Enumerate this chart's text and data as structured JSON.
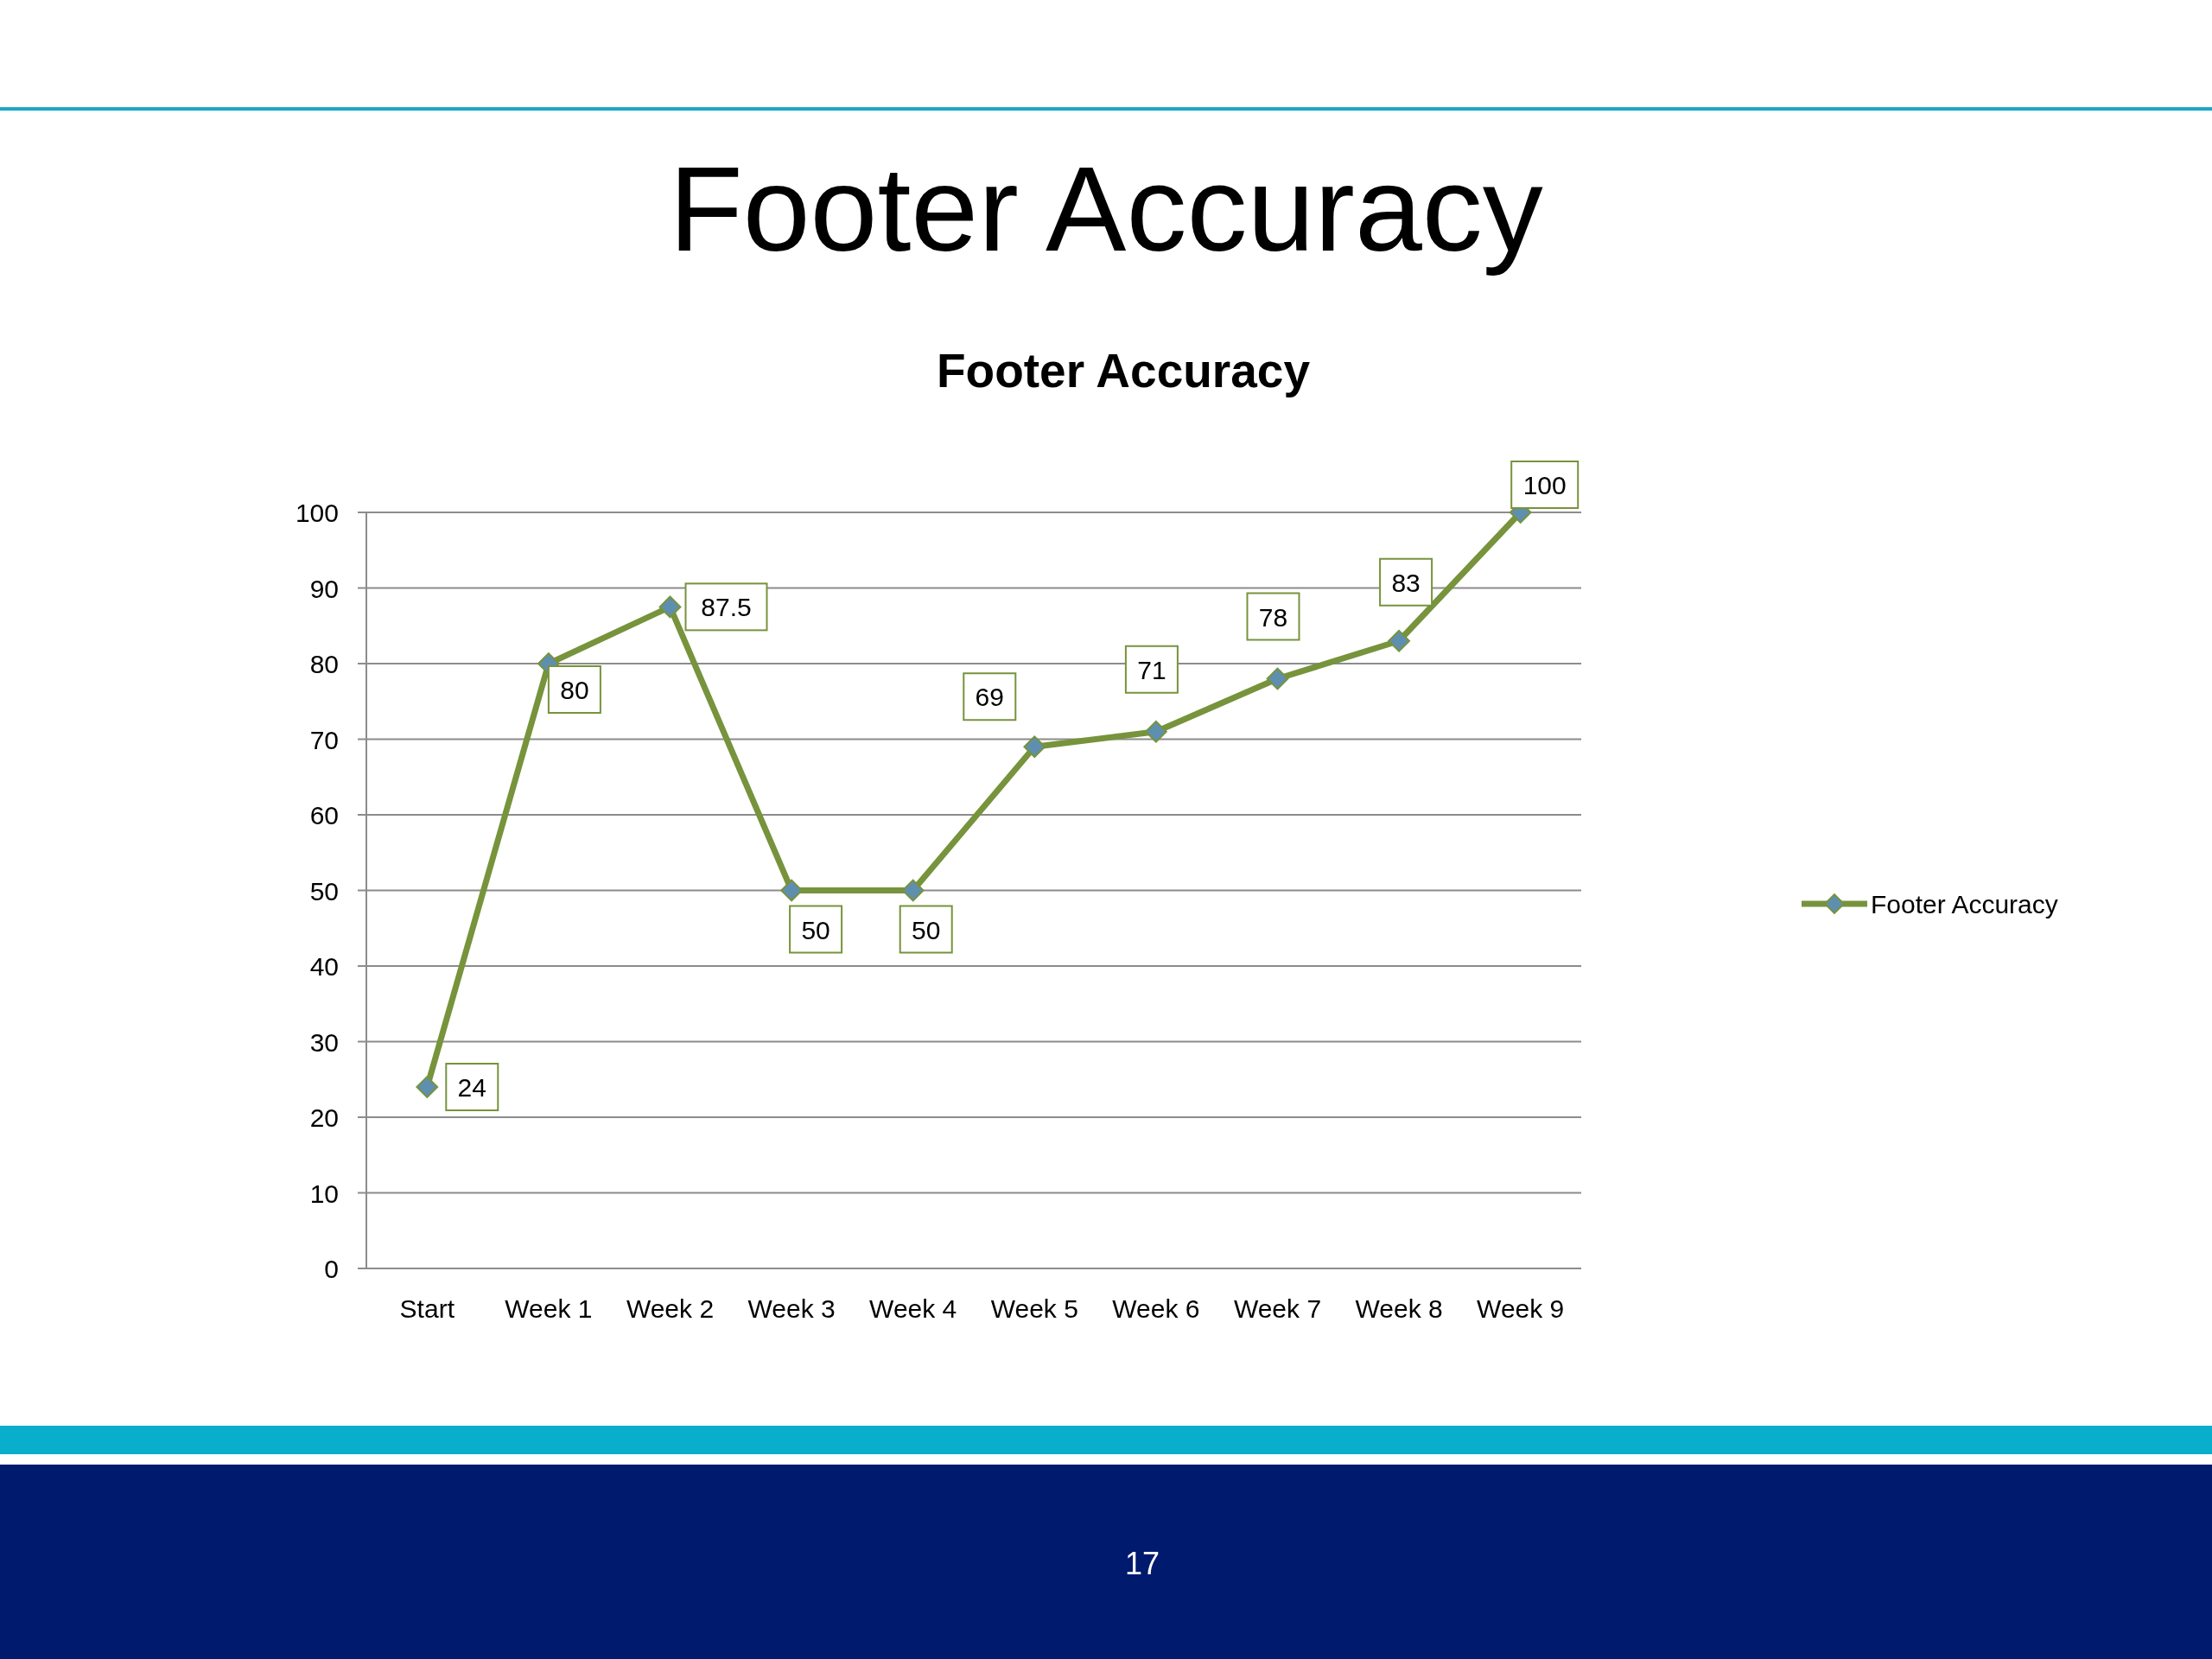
{
  "chart_data": {
    "type": "line",
    "title": "Footer Accuracy",
    "subtitle": "Footer Accuracy",
    "categories": [
      "Start",
      "Week 1",
      "Week 2",
      "Week 3",
      "Week 4",
      "Week 5",
      "Week 6",
      "Week 7",
      "Week 8",
      "Week 9"
    ],
    "series": [
      {
        "name": "Footer Accuracy",
        "color": "#77933c",
        "values": [
          24,
          80,
          87.5,
          50,
          50,
          69,
          71,
          78,
          83,
          100
        ]
      }
    ],
    "ylim": [
      0,
      100
    ],
    "yticks": [
      0,
      10,
      20,
      30,
      40,
      50,
      60,
      70,
      80,
      90,
      100
    ],
    "grid": "y",
    "legend": "right",
    "marker": "diamond",
    "line_style": "solid",
    "data_labels": true,
    "annotations": [
      "17"
    ]
  }
}
